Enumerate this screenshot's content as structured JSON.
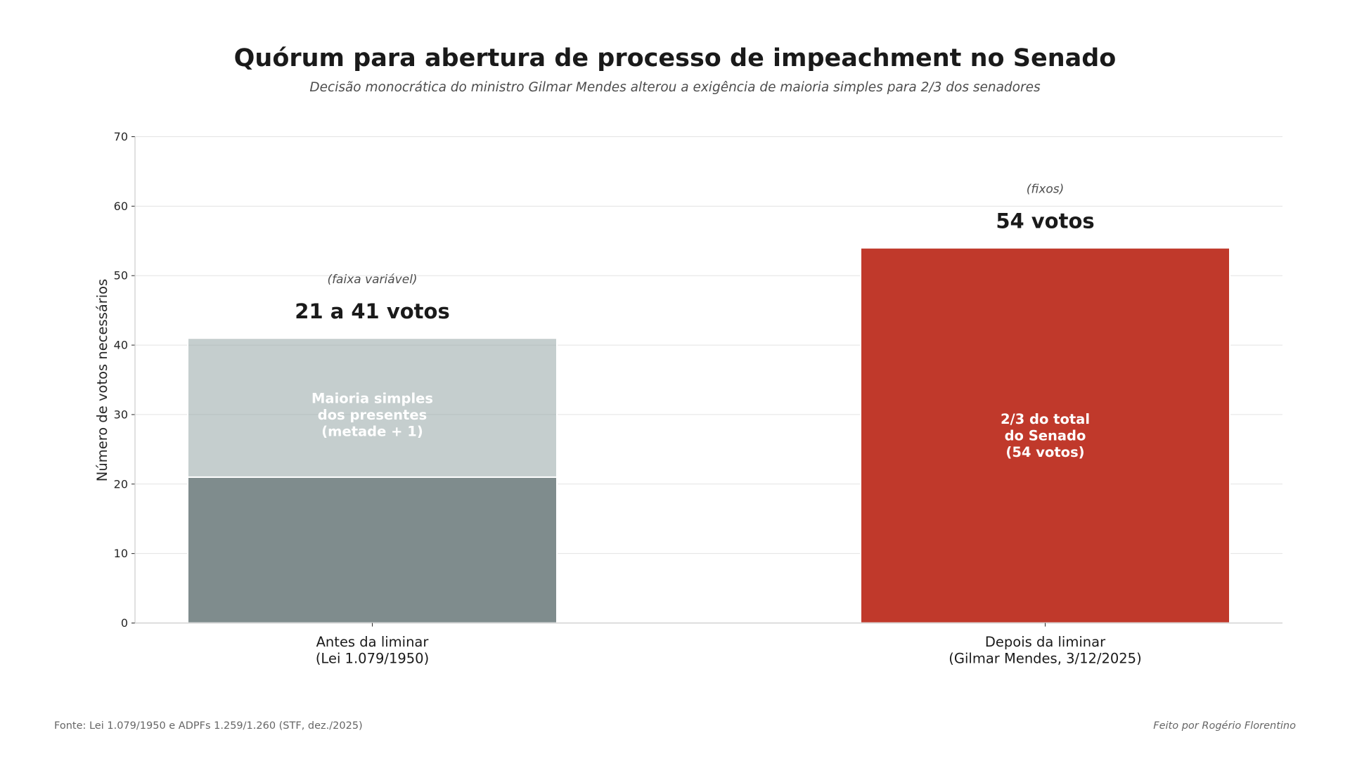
{
  "chart_data": {
    "type": "bar",
    "stacked": true,
    "title": "Quórum para abertura de processo de impeachment no Senado",
    "subtitle": "Decisão monocrática do ministro Gilmar Mendes alterou a exigência de maioria simples para 2/3 dos senadores",
    "xlabel": "",
    "ylabel": "Número de votos necessários",
    "ylim": [
      0,
      70
    ],
    "yticks": [
      0,
      10,
      20,
      30,
      40,
      50,
      60,
      70
    ],
    "grid": true,
    "categories": [
      [
        "Antes da liminar",
        "(Lei 1.079/1950)"
      ],
      [
        "Depois da liminar",
        "(Gilmar Mendes, 3/12/2025)"
      ]
    ],
    "bars": [
      {
        "category_index": 0,
        "segments": [
          {
            "name": "base",
            "from": 0,
            "to": 21,
            "color": "#7f8c8d",
            "opacity": 1
          },
          {
            "name": "faixa",
            "from": 21,
            "to": 41,
            "color": "#95a5a6",
            "opacity": 0.55
          }
        ],
        "inner_label": [
          "Maioria simples",
          "dos presentes",
          "(metade + 1)"
        ],
        "inner_label_value": 30,
        "top_label": "21 a 41 votos",
        "top_note": "(faixa variável)"
      },
      {
        "category_index": 1,
        "segments": [
          {
            "name": "fixo",
            "from": 0,
            "to": 54,
            "color": "#c0392b",
            "opacity": 1
          }
        ],
        "inner_label": [
          "2/3 do total",
          "do Senado",
          "(54 votos)"
        ],
        "inner_label_value": 27,
        "top_label": "54 votos",
        "top_note": "(fixos)"
      }
    ]
  },
  "footer": {
    "source": "Fonte: Lei 1.079/1950 e ADPFs 1.259/1.260 (STF, dez./2025)",
    "credit": "Feito por Rogério Florentino"
  }
}
